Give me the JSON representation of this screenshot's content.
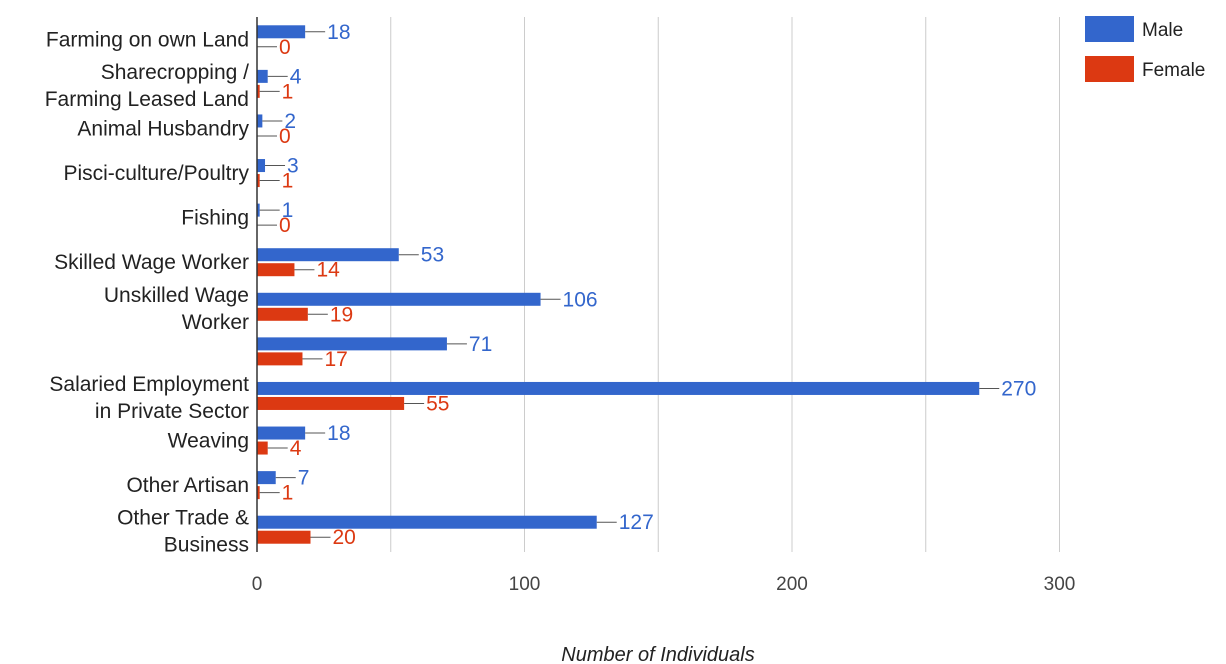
{
  "chart_data": {
    "type": "bar",
    "orientation": "horizontal",
    "categories": [
      "Farming on own Land",
      "Sharecropping / Farming Leased Land",
      "Animal Husbandry",
      "Pisci-culture/Poultry",
      "Fishing",
      "Skilled Wage Worker",
      "Unskilled Wage Worker",
      "",
      "Salaried Employment in Private Sector",
      "Weaving",
      "Other Artisan",
      "Other Trade & Business"
    ],
    "category_label_lines": [
      [
        "Farming on own Land"
      ],
      [
        "Sharecropping /",
        "Farming Leased Land"
      ],
      [
        "Animal Husbandry"
      ],
      [
        "Pisci-culture/Poultry"
      ],
      [
        "Fishing"
      ],
      [
        "Skilled Wage Worker"
      ],
      [
        "Unskilled Wage",
        "Worker"
      ],
      [],
      [
        "Salaried Employment",
        "in Private Sector"
      ],
      [
        "Weaving"
      ],
      [
        "Other Artisan"
      ],
      [
        "Other Trade &",
        "Business"
      ]
    ],
    "series": [
      {
        "name": "Male",
        "color": "#3366cc",
        "values": [
          18,
          4,
          2,
          3,
          1,
          53,
          106,
          71,
          270,
          18,
          7,
          127
        ]
      },
      {
        "name": "Female",
        "color": "#dc3912",
        "values": [
          0,
          1,
          0,
          1,
          0,
          14,
          19,
          17,
          55,
          4,
          1,
          20
        ]
      }
    ],
    "xlabel": "Number of Individuals",
    "ylabel": "",
    "xlim": [
      0,
      340
    ],
    "x_ticks": [
      0,
      100,
      200,
      300
    ],
    "x_ticks_labels": [
      "0",
      "100",
      "200",
      "300"
    ],
    "grid": true,
    "legend": "top-right",
    "data_labels": true
  }
}
